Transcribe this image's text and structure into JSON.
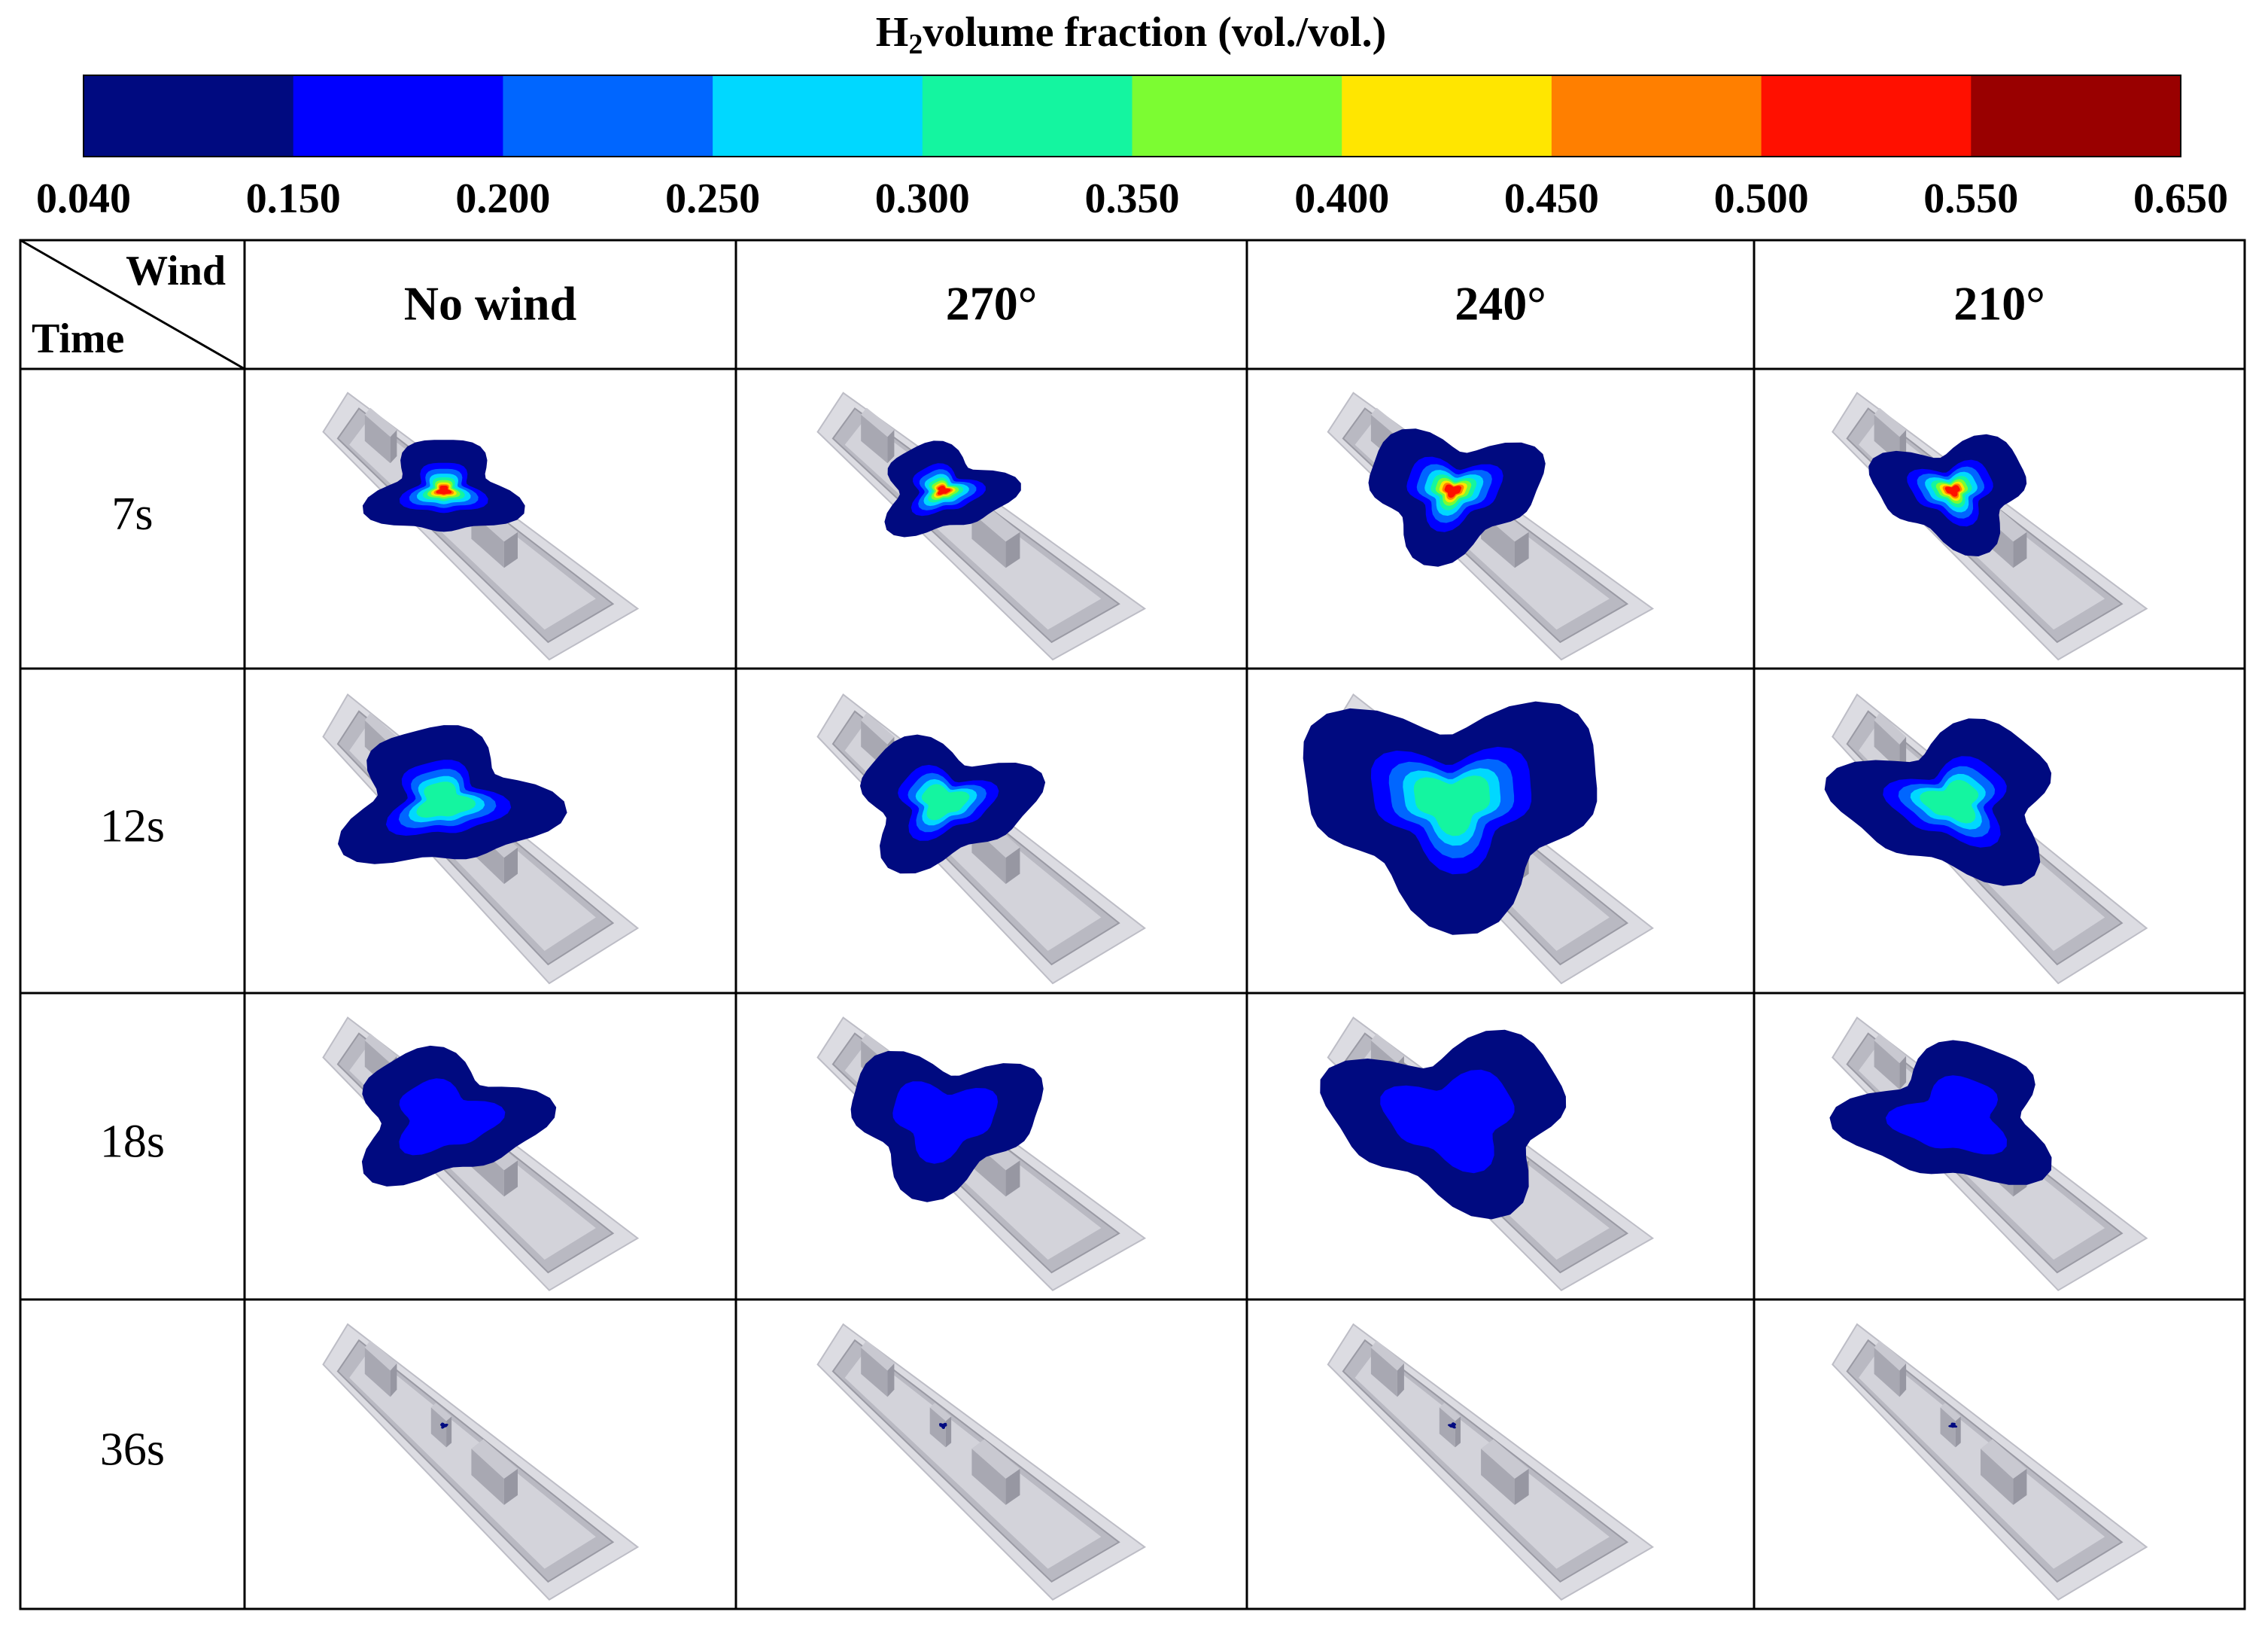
{
  "colorbar": {
    "title_prefix": "H",
    "title_subscript": "2",
    "title_rest": "volume fraction (vol./vol.)",
    "levels": [
      {
        "value": 0.04,
        "label": "0.040"
      },
      {
        "value": 0.15,
        "label": "0.150"
      },
      {
        "value": 0.2,
        "label": "0.200"
      },
      {
        "value": 0.25,
        "label": "0.250"
      },
      {
        "value": 0.3,
        "label": "0.300"
      },
      {
        "value": 0.35,
        "label": "0.350"
      },
      {
        "value": 0.4,
        "label": "0.400"
      },
      {
        "value": 0.45,
        "label": "0.450"
      },
      {
        "value": 0.5,
        "label": "0.500"
      },
      {
        "value": 0.55,
        "label": "0.550"
      },
      {
        "value": 0.65,
        "label": "0.650"
      }
    ],
    "colors": [
      "#000a80",
      "#0000ff",
      "#0066ff",
      "#00d8ff",
      "#14f5a0",
      "#7cfc32",
      "#ffe600",
      "#ff7f00",
      "#ff1000",
      "#990000"
    ]
  },
  "table": {
    "corner_top": "Wind",
    "corner_bottom": "Time",
    "columns": [
      "No wind",
      "270°",
      "240°",
      "210°"
    ],
    "rows": [
      "7s",
      "12s",
      "18s",
      "36s"
    ]
  }
}
